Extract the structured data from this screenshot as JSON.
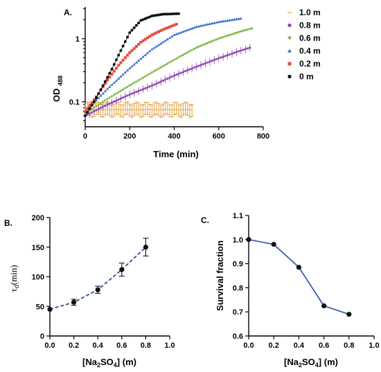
{
  "chart_data": [
    {
      "panel": "A.",
      "type": "scatter",
      "xlabel": "Time (min)",
      "ylabel": "OD",
      "ylabel_sub": "488",
      "x_ticks": [
        "0",
        "200",
        "400",
        "600",
        "800"
      ],
      "y_ticks": [
        "0.1",
        "1"
      ],
      "xlim": [
        0,
        800
      ],
      "ylim": [
        0.04,
        3.2
      ],
      "yscale": "log",
      "legend_position": "right",
      "series": [
        {
          "name": "1.0 m",
          "color": "#e6a23c",
          "marker": "errorbar-cap",
          "x": [
            0,
            100,
            200,
            300,
            400,
            480
          ],
          "y": [
            0.075,
            0.075,
            0.075,
            0.075,
            0.075,
            0.075
          ]
        },
        {
          "name": "0.8 m",
          "color": "#8e44ad",
          "marker": "circle",
          "x": [
            0,
            100,
            200,
            300,
            400,
            500,
            600,
            700,
            740
          ],
          "y": [
            0.06,
            0.09,
            0.13,
            0.18,
            0.26,
            0.36,
            0.49,
            0.65,
            0.72
          ]
        },
        {
          "name": "0.6 m",
          "color": "#7cb342",
          "marker": "triangle-down",
          "x": [
            0,
            100,
            200,
            300,
            400,
            500,
            600,
            700,
            750
          ],
          "y": [
            0.065,
            0.11,
            0.18,
            0.29,
            0.46,
            0.72,
            1.0,
            1.3,
            1.45
          ]
        },
        {
          "name": "0.4 m",
          "color": "#3b6fd1",
          "marker": "triangle-up",
          "x": [
            0,
            100,
            200,
            300,
            400,
            500,
            600,
            700
          ],
          "y": [
            0.07,
            0.16,
            0.34,
            0.68,
            1.15,
            1.55,
            1.85,
            2.1
          ]
        },
        {
          "name": "0.2 m",
          "color": "#e74c3c",
          "marker": "square",
          "x": [
            0,
            50,
            100,
            150,
            200,
            250,
            300,
            350,
            410
          ],
          "y": [
            0.07,
            0.12,
            0.22,
            0.38,
            0.6,
            0.88,
            1.15,
            1.4,
            1.7
          ]
        },
        {
          "name": "0 m",
          "color": "#111111",
          "marker": "circle",
          "x": [
            0,
            40,
            80,
            120,
            160,
            200,
            250,
            300,
            350,
            420
          ],
          "y": [
            0.06,
            0.1,
            0.18,
            0.33,
            0.65,
            1.25,
            1.95,
            2.3,
            2.45,
            2.5
          ]
        }
      ]
    },
    {
      "panel": "B.",
      "type": "line",
      "xlabel": "[Na2SO4] (m)",
      "ylabel": "τd(min)",
      "x_ticks": [
        "0.0",
        "0.2",
        "0.4",
        "0.6",
        "0.8",
        "1.0"
      ],
      "y_ticks": [
        "0",
        "50",
        "100",
        "150",
        "200"
      ],
      "xlim": [
        0,
        1.0
      ],
      "ylim": [
        0,
        200
      ],
      "line_style": "dashed",
      "x": [
        0.0,
        0.2,
        0.4,
        0.6,
        0.8
      ],
      "y": [
        45,
        57,
        78,
        112,
        150
      ],
      "error": [
        0,
        5,
        6,
        11,
        15
      ]
    },
    {
      "panel": "C.",
      "type": "line",
      "xlabel": "[Na2SO4] (m)",
      "ylabel": "Survival fraction",
      "x_ticks": [
        "0.0",
        "0.2",
        "0.4",
        "0.6",
        "0.8",
        "1.0"
      ],
      "y_ticks": [
        "0.6",
        "0.7",
        "0.8",
        "0.9",
        "1.0",
        "1.1"
      ],
      "xlim": [
        0,
        1.0
      ],
      "ylim": [
        0.6,
        1.1
      ],
      "line_style": "solid",
      "x": [
        0.0,
        0.2,
        0.4,
        0.6,
        0.8
      ],
      "y": [
        1.0,
        0.98,
        0.885,
        0.725,
        0.69
      ]
    }
  ],
  "colors": {
    "line_b": "#2d4f8f",
    "line_c": "#3b5bb5",
    "marker": "#111111"
  }
}
